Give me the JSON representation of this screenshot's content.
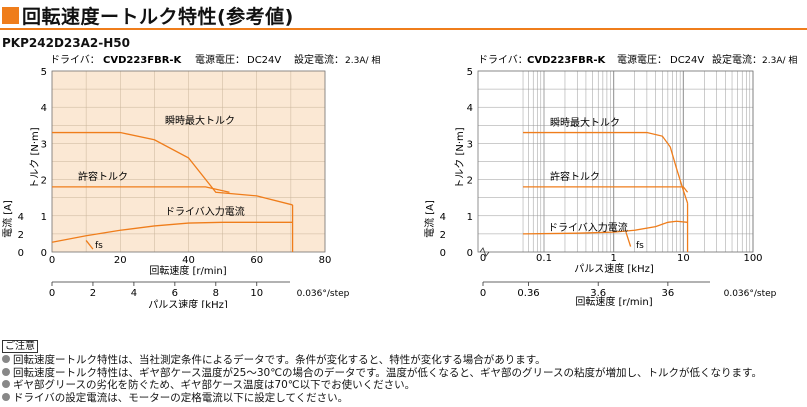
{
  "title": "回転速度ートルク特性(参考値)",
  "model": "PKP242D23A2-H50",
  "colors": {
    "accent": "#ef7d1b",
    "plot_bg": "#fbe8d4",
    "line": "#ef7d1b"
  },
  "chart_data": [
    {
      "type": "line",
      "driver_label": "ドライバ：",
      "driver": "CVD223FBR-K",
      "supply_label": "電源電圧：",
      "supply": "DC24V",
      "current_label": "設定電流：",
      "current": "2.3A/ 相",
      "xlabel": "回転速度 [r/min]",
      "xticks": [
        "0",
        "20",
        "40",
        "60",
        "80"
      ],
      "x_range": [
        0,
        80
      ],
      "x2label": "パルス速度 [kHz]",
      "x2ticks": [
        "0",
        "2",
        "4",
        "6",
        "8",
        "10"
      ],
      "x2_extra": "0.036°/step",
      "ylabel": "トルク [N·m]",
      "yticks": [
        "0",
        "1",
        "2",
        "3",
        "4",
        "5"
      ],
      "y_range": [
        0,
        5
      ],
      "y2label": "電流 [A]",
      "y2ticks": [
        "0",
        "2",
        "4"
      ],
      "grid": true,
      "fs_label": "fs",
      "series": [
        {
          "name": "瞬時最大トルク",
          "x": [
            0,
            20,
            30,
            40,
            48,
            60,
            70.5
          ],
          "y": [
            3.3,
            3.3,
            3.1,
            2.6,
            1.65,
            1.55,
            1.3
          ]
        },
        {
          "name": "許容トルク",
          "x": [
            0,
            45,
            52
          ],
          "y": [
            1.8,
            1.8,
            1.65
          ]
        },
        {
          "name": "ドライバ入力電流",
          "x": [
            0,
            10,
            20,
            30,
            40,
            50,
            60,
            70.5
          ],
          "y": [
            0.27,
            0.45,
            0.6,
            0.72,
            0.8,
            0.82,
            0.82,
            0.82
          ]
        },
        {
          "name": "fs",
          "x": [
            10,
            12
          ],
          "y": [
            0.32,
            0.08
          ]
        }
      ]
    },
    {
      "type": "line",
      "driver_label": "ドライバ：",
      "driver": "CVD223FBR-K",
      "supply_label": "電源電圧：",
      "supply": "DC24V",
      "current_label": "設定電流：",
      "current": "2.3A/ 相",
      "xscale": "log",
      "xlabel": "パルス速度 [kHz]",
      "xticks": [
        "0",
        "0.1",
        "1",
        "10",
        "100"
      ],
      "x_range": [
        0.05,
        100
      ],
      "x2label": "回転速度 [r/min]",
      "x2ticks": [
        "0",
        "0.36",
        "3.6",
        "36"
      ],
      "x2_extra": "0.036°/step",
      "ylabel": "トルク [N·m]",
      "yticks": [
        "0",
        "1",
        "2",
        "3",
        "4",
        "5"
      ],
      "y_range": [
        0,
        5
      ],
      "y2label": "電流 [A]",
      "y2ticks": [
        "0",
        "2",
        "4"
      ],
      "grid": true,
      "fs_label": "fs",
      "series": [
        {
          "name": "瞬時最大トルク",
          "x": [
            0.05,
            3,
            5,
            6.5,
            8,
            10,
            11.5
          ],
          "y": [
            3.3,
            3.3,
            3.2,
            2.9,
            2.3,
            1.7,
            1.35
          ]
        },
        {
          "name": "許容トルク",
          "x": [
            0.05,
            10,
            11.5
          ],
          "y": [
            1.8,
            1.8,
            1.65
          ]
        },
        {
          "name": "ドライバ入力電流",
          "x": [
            0.05,
            0.3,
            1,
            2,
            4,
            6,
            8,
            11.5
          ],
          "y": [
            0.5,
            0.52,
            0.55,
            0.6,
            0.7,
            0.82,
            0.85,
            0.82
          ]
        },
        {
          "name": "fs",
          "x": [
            1.5,
            1.75
          ],
          "y": [
            0.55,
            0.15
          ]
        }
      ]
    }
  ],
  "notes": {
    "head": "ご注意",
    "lines": [
      "回転速度ートルク特性は、当社測定条件によるデータです。条件が変化すると、特性が変化する場合があります。",
      "回転速度ートルク特性は、ギヤ部ケース温度が25～30℃の場合のデータです。温度が低くなると、ギヤ部のグリースの粘度が増加し、トルクが低くなります。",
      "ギヤ部グリースの劣化を防ぐため、ギヤ部ケース温度は70℃以下でお使いください。",
      "ドライバの設定電流は、モーターの定格電流以下に設定してください。"
    ]
  }
}
